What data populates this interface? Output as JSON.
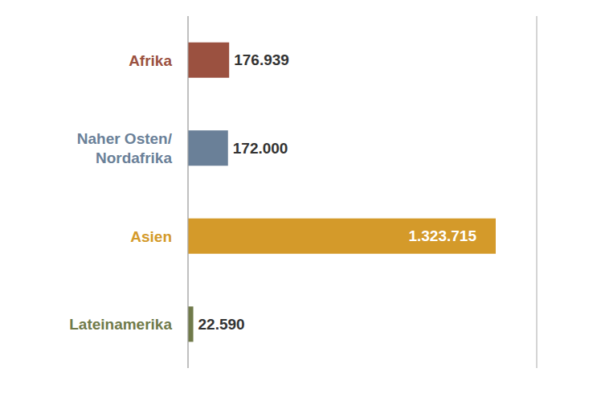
{
  "chart_data": {
    "type": "bar",
    "orientation": "horizontal",
    "categories": [
      "Afrika",
      "Naher Osten/ Nordafrika",
      "Asien",
      "Lateinamerika"
    ],
    "values": [
      176939,
      172000,
      1323715,
      22590
    ],
    "value_labels": [
      "176.939",
      "172.000",
      "1.323.715",
      "22.590"
    ],
    "colors": [
      "#9b5140",
      "#6a8098",
      "#d49a2a",
      "#707a4a"
    ],
    "xlim": [
      0,
      1500000
    ],
    "xticks": [
      0,
      300000,
      600000,
      900000,
      1200000,
      1500000
    ],
    "grid": true,
    "data_labels": true,
    "tick_labels": false
  }
}
